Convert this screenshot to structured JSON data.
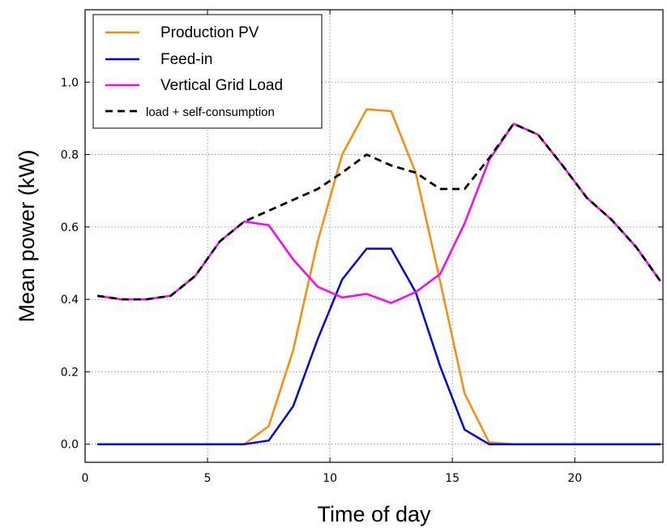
{
  "chart_data": {
    "type": "line",
    "title": "",
    "xlabel": "Time of day",
    "ylabel": "Mean power (kW)",
    "xlim": [
      0,
      23.6
    ],
    "ylim": [
      -0.05,
      1.2
    ],
    "x_ticks": [
      0,
      5,
      10,
      15,
      20
    ],
    "y_ticks": [
      0.0,
      0.2,
      0.4,
      0.6,
      0.8,
      1.0
    ],
    "grid": true,
    "legend_position": "top-left",
    "x": [
      0.5,
      1.5,
      2.5,
      3.5,
      4.5,
      5.5,
      6.5,
      7.5,
      8.5,
      9.5,
      10.5,
      11.5,
      12.5,
      13.5,
      14.5,
      15.5,
      16.5,
      17.5,
      18.5,
      19.5,
      20.5,
      21.5,
      22.5,
      23.5
    ],
    "series": [
      {
        "name": "Production PV",
        "color": "#ff8c00",
        "dash": "solid",
        "values": [
          0,
          0,
          0,
          0,
          0,
          0,
          0,
          0.05,
          0.26,
          0.56,
          0.8,
          0.925,
          0.92,
          0.75,
          0.45,
          0.14,
          0.005,
          0,
          0,
          0,
          0,
          0,
          0,
          0
        ]
      },
      {
        "name": "Feed-in",
        "color": "#0000ff",
        "dash": "solid",
        "values": [
          0,
          0,
          0,
          0,
          0,
          0,
          0,
          0.01,
          0.105,
          0.29,
          0.455,
          0.54,
          0.54,
          0.42,
          0.215,
          0.04,
          0,
          0,
          0,
          0,
          0,
          0,
          0,
          0
        ]
      },
      {
        "name": "Vertical Grid Load",
        "color": "#ff00ff",
        "dash": "solid",
        "values": [
          0.41,
          0.4,
          0.4,
          0.41,
          0.465,
          0.56,
          0.615,
          0.605,
          0.51,
          0.435,
          0.405,
          0.415,
          0.39,
          0.42,
          0.47,
          0.61,
          0.785,
          0.885,
          0.855,
          0.77,
          0.68,
          0.62,
          0.545,
          0.45
        ]
      },
      {
        "name": "load + self-consumption",
        "color": "#000000",
        "dash": "dashed",
        "values": [
          0.41,
          0.4,
          0.4,
          0.41,
          0.465,
          0.56,
          0.615,
          0.645,
          0.675,
          0.705,
          0.75,
          0.8,
          0.77,
          0.75,
          0.705,
          0.705,
          0.79,
          0.885,
          0.855,
          0.77,
          0.68,
          0.62,
          0.545,
          0.45
        ]
      }
    ]
  }
}
